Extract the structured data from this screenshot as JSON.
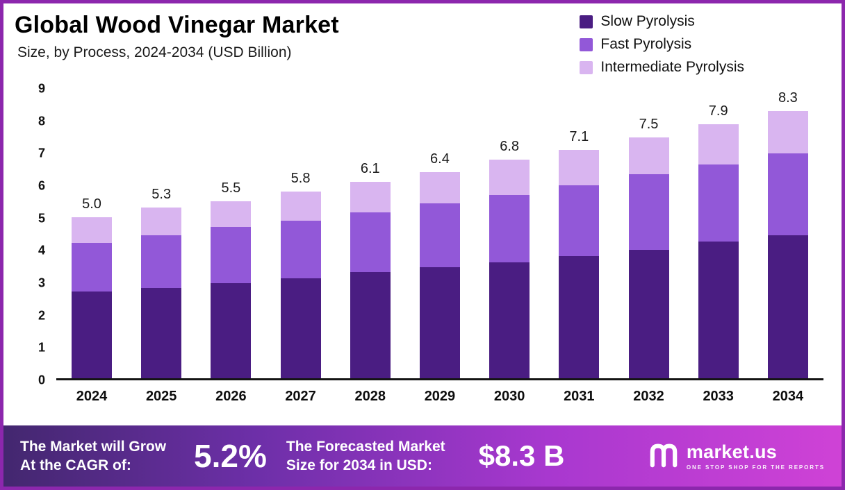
{
  "header": {
    "title": "Global Wood Vinegar Market",
    "subtitle": "Size, by Process, 2024-2034 (USD Billion)"
  },
  "legend": [
    {
      "label": "Slow Pyrolysis",
      "color": "#4a1d82"
    },
    {
      "label": "Fast Pyrolysis",
      "color": "#9258d8"
    },
    {
      "label": "Intermediate Pyrolysis",
      "color": "#d9b5f0"
    }
  ],
  "chart_data": {
    "type": "bar",
    "stacked": true,
    "title": "Global Wood Vinegar Market Size, by Process, 2024-2034 (USD Billion)",
    "xlabel": "",
    "ylabel": "",
    "categories": [
      "2024",
      "2025",
      "2026",
      "2027",
      "2028",
      "2029",
      "2030",
      "2031",
      "2032",
      "2033",
      "2034"
    ],
    "series": [
      {
        "name": "Slow Pyrolysis",
        "color": "#4a1d82",
        "values": [
          2.7,
          2.8,
          2.95,
          3.1,
          3.3,
          3.45,
          3.6,
          3.8,
          4.0,
          4.25,
          4.45
        ]
      },
      {
        "name": "Fast Pyrolysis",
        "color": "#9258d8",
        "values": [
          1.5,
          1.65,
          1.75,
          1.8,
          1.85,
          2.0,
          2.1,
          2.2,
          2.35,
          2.4,
          2.55
        ]
      },
      {
        "name": "Intermediate Pyrolysis",
        "color": "#d9b5f0",
        "values": [
          0.8,
          0.85,
          0.8,
          0.9,
          0.95,
          0.95,
          1.1,
          1.1,
          1.15,
          1.25,
          1.3
        ]
      }
    ],
    "totals": [
      5.0,
      5.3,
      5.5,
      5.8,
      6.1,
      6.4,
      6.8,
      7.1,
      7.5,
      7.9,
      8.3
    ],
    "total_labels": [
      "5.0",
      "5.3",
      "5.5",
      "5.8",
      "6.1",
      "6.4",
      "6.8",
      "7.1",
      "7.5",
      "7.9",
      "8.3"
    ],
    "ylim": [
      0,
      9
    ],
    "yticks": [
      0,
      1,
      2,
      3,
      4,
      5,
      6,
      7,
      8,
      9
    ],
    "grid": false,
    "legend_position": "top-right"
  },
  "banner": {
    "cagr_label_line1": "The Market will Grow",
    "cagr_label_line2": "At the CAGR of:",
    "cagr_value": "5.2%",
    "forecast_label_line1": "The Forecasted Market",
    "forecast_label_line2": "Size for 2034 in USD:",
    "forecast_value": "$8.3 B",
    "brand": {
      "name": "market.us",
      "tagline": "ONE STOP SHOP FOR THE REPORTS"
    }
  },
  "colors": {
    "frame_border": "#8c27ad",
    "axis_line": "#141414",
    "banner_gradient_start": "#43276f",
    "banner_gradient_end": "#cf42d6"
  }
}
